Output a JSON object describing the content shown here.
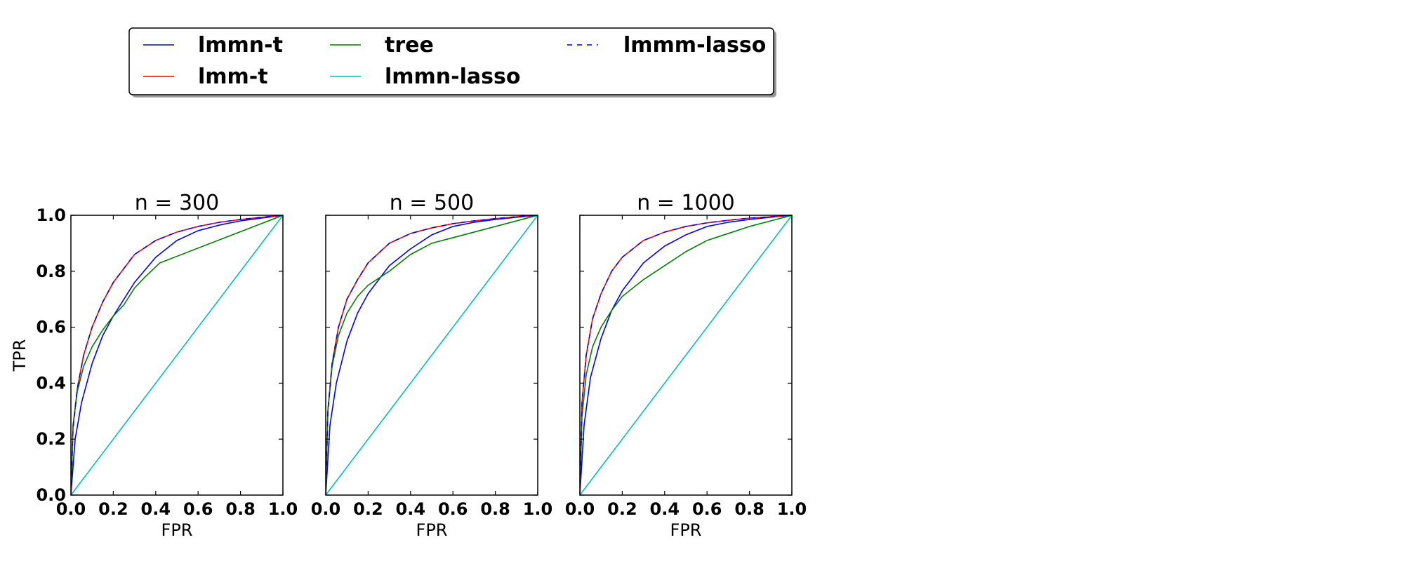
{
  "legend": {
    "entries": [
      {
        "label": "lmmn-t",
        "color": "#0000ff",
        "dash": false
      },
      {
        "label": "lmm-t",
        "color": "#ff0000",
        "dash": false
      },
      {
        "label": "tree",
        "color": "#008000",
        "dash": false
      },
      {
        "label": "lmmn-lasso",
        "color": "#00bfbf",
        "dash": false
      },
      {
        "label": "lmmm-lasso",
        "color": "#0000ff",
        "dash": true
      }
    ]
  },
  "chart_data": [
    {
      "type": "line",
      "title": "n = 300",
      "xlabel": "FPR",
      "ylabel": "TPR",
      "xlim": [
        0,
        1
      ],
      "ylim": [
        0,
        1
      ],
      "xticks": [
        "0.0",
        "0.2",
        "0.4",
        "0.6",
        "0.8",
        "1.0"
      ],
      "yticks": [
        "0.0",
        "0.2",
        "0.4",
        "0.6",
        "0.8",
        "1.0"
      ],
      "grid": false,
      "series": [
        {
          "name": "lmmn-t",
          "color": "#0000ff",
          "dash": false,
          "points": [
            [
              0,
              0
            ],
            [
              0.02,
              0.2
            ],
            [
              0.05,
              0.33
            ],
            [
              0.1,
              0.47
            ],
            [
              0.15,
              0.57
            ],
            [
              0.2,
              0.64
            ],
            [
              0.3,
              0.76
            ],
            [
              0.4,
              0.85
            ],
            [
              0.5,
              0.91
            ],
            [
              0.6,
              0.945
            ],
            [
              0.7,
              0.965
            ],
            [
              0.8,
              0.98
            ],
            [
              0.9,
              0.99
            ],
            [
              1,
              1
            ]
          ]
        },
        {
          "name": "lmm-t",
          "color": "#ff0000",
          "dash": false,
          "points": [
            [
              0,
              0
            ],
            [
              0.01,
              0.24
            ],
            [
              0.03,
              0.38
            ],
            [
              0.06,
              0.5
            ],
            [
              0.1,
              0.6
            ],
            [
              0.15,
              0.69
            ],
            [
              0.2,
              0.76
            ],
            [
              0.3,
              0.86
            ],
            [
              0.4,
              0.91
            ],
            [
              0.5,
              0.94
            ],
            [
              0.6,
              0.96
            ],
            [
              0.7,
              0.975
            ],
            [
              0.8,
              0.985
            ],
            [
              0.9,
              0.993
            ],
            [
              1,
              1
            ]
          ]
        },
        {
          "name": "tree",
          "color": "#008000",
          "dash": false,
          "points": [
            [
              0,
              0
            ],
            [
              0.01,
              0.25
            ],
            [
              0.03,
              0.37
            ],
            [
              0.06,
              0.46
            ],
            [
              0.1,
              0.53
            ],
            [
              0.15,
              0.59
            ],
            [
              0.2,
              0.64
            ],
            [
              0.25,
              0.68
            ],
            [
              0.3,
              0.74
            ],
            [
              0.35,
              0.78
            ],
            [
              0.42,
              0.83
            ],
            [
              1,
              1
            ]
          ]
        },
        {
          "name": "lmmn-lasso",
          "color": "#00bfbf",
          "dash": false,
          "points": [
            [
              0,
              0
            ],
            [
              1,
              1
            ]
          ]
        },
        {
          "name": "lmmm-lasso",
          "color": "#0000ff",
          "dash": true,
          "points": [
            [
              0,
              0
            ],
            [
              0.01,
              0.24
            ],
            [
              0.03,
              0.38
            ],
            [
              0.06,
              0.5
            ],
            [
              0.1,
              0.6
            ],
            [
              0.15,
              0.69
            ],
            [
              0.2,
              0.76
            ],
            [
              0.3,
              0.86
            ],
            [
              0.4,
              0.91
            ],
            [
              0.5,
              0.94
            ],
            [
              0.6,
              0.96
            ],
            [
              0.7,
              0.975
            ],
            [
              0.8,
              0.985
            ],
            [
              0.9,
              0.993
            ],
            [
              1,
              1
            ]
          ]
        }
      ]
    },
    {
      "type": "line",
      "title": "n = 500",
      "xlabel": "FPR",
      "ylabel": "",
      "xlim": [
        0,
        1
      ],
      "ylim": [
        0,
        1
      ],
      "xticks": [
        "0.0",
        "0.2",
        "0.4",
        "0.6",
        "0.8",
        "1.0"
      ],
      "yticks": [],
      "grid": false,
      "series": [
        {
          "name": "lmmn-t",
          "color": "#0000ff",
          "dash": false,
          "points": [
            [
              0,
              0
            ],
            [
              0.02,
              0.25
            ],
            [
              0.05,
              0.4
            ],
            [
              0.1,
              0.55
            ],
            [
              0.15,
              0.65
            ],
            [
              0.2,
              0.72
            ],
            [
              0.3,
              0.82
            ],
            [
              0.4,
              0.88
            ],
            [
              0.5,
              0.93
            ],
            [
              0.6,
              0.96
            ],
            [
              0.7,
              0.975
            ],
            [
              0.8,
              0.985
            ],
            [
              0.9,
              0.993
            ],
            [
              1,
              1
            ]
          ]
        },
        {
          "name": "lmm-t",
          "color": "#ff0000",
          "dash": false,
          "points": [
            [
              0,
              0
            ],
            [
              0.01,
              0.3
            ],
            [
              0.03,
              0.47
            ],
            [
              0.06,
              0.6
            ],
            [
              0.1,
              0.7
            ],
            [
              0.15,
              0.77
            ],
            [
              0.2,
              0.83
            ],
            [
              0.3,
              0.9
            ],
            [
              0.4,
              0.935
            ],
            [
              0.5,
              0.955
            ],
            [
              0.6,
              0.97
            ],
            [
              0.7,
              0.98
            ],
            [
              0.8,
              0.988
            ],
            [
              0.9,
              0.995
            ],
            [
              1,
              1
            ]
          ]
        },
        {
          "name": "tree",
          "color": "#008000",
          "dash": false,
          "points": [
            [
              0,
              0
            ],
            [
              0.01,
              0.3
            ],
            [
              0.03,
              0.46
            ],
            [
              0.06,
              0.57
            ],
            [
              0.1,
              0.65
            ],
            [
              0.15,
              0.71
            ],
            [
              0.2,
              0.75
            ],
            [
              0.3,
              0.8
            ],
            [
              0.4,
              0.86
            ],
            [
              0.5,
              0.9
            ],
            [
              1,
              1
            ]
          ]
        },
        {
          "name": "lmmn-lasso",
          "color": "#00bfbf",
          "dash": false,
          "points": [
            [
              0,
              0
            ],
            [
              1,
              1
            ]
          ]
        },
        {
          "name": "lmmm-lasso",
          "color": "#0000ff",
          "dash": true,
          "points": [
            [
              0,
              0
            ],
            [
              0.01,
              0.3
            ],
            [
              0.03,
              0.47
            ],
            [
              0.06,
              0.6
            ],
            [
              0.1,
              0.7
            ],
            [
              0.15,
              0.77
            ],
            [
              0.2,
              0.83
            ],
            [
              0.3,
              0.9
            ],
            [
              0.4,
              0.935
            ],
            [
              0.5,
              0.955
            ],
            [
              0.6,
              0.97
            ],
            [
              0.7,
              0.98
            ],
            [
              0.8,
              0.988
            ],
            [
              0.9,
              0.995
            ],
            [
              1,
              1
            ]
          ]
        }
      ]
    },
    {
      "type": "line",
      "title": "n = 1000",
      "xlabel": "FPR",
      "ylabel": "",
      "xlim": [
        0,
        1
      ],
      "ylim": [
        0,
        1
      ],
      "xticks": [
        "0.0",
        "0.2",
        "0.4",
        "0.6",
        "0.8",
        "1.0"
      ],
      "yticks": [],
      "grid": false,
      "series": [
        {
          "name": "lmmn-t",
          "color": "#0000ff",
          "dash": false,
          "points": [
            [
              0,
              0
            ],
            [
              0.02,
              0.25
            ],
            [
              0.05,
              0.42
            ],
            [
              0.1,
              0.56
            ],
            [
              0.15,
              0.66
            ],
            [
              0.2,
              0.73
            ],
            [
              0.3,
              0.83
            ],
            [
              0.4,
              0.89
            ],
            [
              0.5,
              0.93
            ],
            [
              0.6,
              0.96
            ],
            [
              0.7,
              0.975
            ],
            [
              0.8,
              0.985
            ],
            [
              0.9,
              0.993
            ],
            [
              1,
              1
            ]
          ]
        },
        {
          "name": "lmm-t",
          "color": "#ff0000",
          "dash": false,
          "points": [
            [
              0,
              0
            ],
            [
              0.01,
              0.33
            ],
            [
              0.03,
              0.5
            ],
            [
              0.06,
              0.63
            ],
            [
              0.1,
              0.72
            ],
            [
              0.15,
              0.8
            ],
            [
              0.2,
              0.85
            ],
            [
              0.3,
              0.91
            ],
            [
              0.4,
              0.94
            ],
            [
              0.5,
              0.96
            ],
            [
              0.6,
              0.973
            ],
            [
              0.7,
              0.982
            ],
            [
              0.8,
              0.99
            ],
            [
              0.9,
              0.995
            ],
            [
              1,
              1
            ]
          ]
        },
        {
          "name": "tree",
          "color": "#008000",
          "dash": false,
          "points": [
            [
              0,
              0
            ],
            [
              0.01,
              0.28
            ],
            [
              0.03,
              0.43
            ],
            [
              0.06,
              0.53
            ],
            [
              0.1,
              0.6
            ],
            [
              0.15,
              0.66
            ],
            [
              0.2,
              0.71
            ],
            [
              0.3,
              0.77
            ],
            [
              0.4,
              0.82
            ],
            [
              0.5,
              0.87
            ],
            [
              0.6,
              0.91
            ],
            [
              0.7,
              0.935
            ],
            [
              0.8,
              0.96
            ],
            [
              0.9,
              0.98
            ],
            [
              1,
              1
            ]
          ]
        },
        {
          "name": "lmmn-lasso",
          "color": "#00bfbf",
          "dash": false,
          "points": [
            [
              0,
              0
            ],
            [
              1,
              1
            ]
          ]
        },
        {
          "name": "lmmm-lasso",
          "color": "#0000ff",
          "dash": true,
          "points": [
            [
              0,
              0
            ],
            [
              0.01,
              0.33
            ],
            [
              0.03,
              0.5
            ],
            [
              0.06,
              0.63
            ],
            [
              0.1,
              0.72
            ],
            [
              0.15,
              0.8
            ],
            [
              0.2,
              0.85
            ],
            [
              0.3,
              0.91
            ],
            [
              0.4,
              0.94
            ],
            [
              0.5,
              0.96
            ],
            [
              0.6,
              0.973
            ],
            [
              0.7,
              0.982
            ],
            [
              0.8,
              0.99
            ],
            [
              0.9,
              0.995
            ],
            [
              1,
              1
            ]
          ]
        }
      ]
    }
  ]
}
